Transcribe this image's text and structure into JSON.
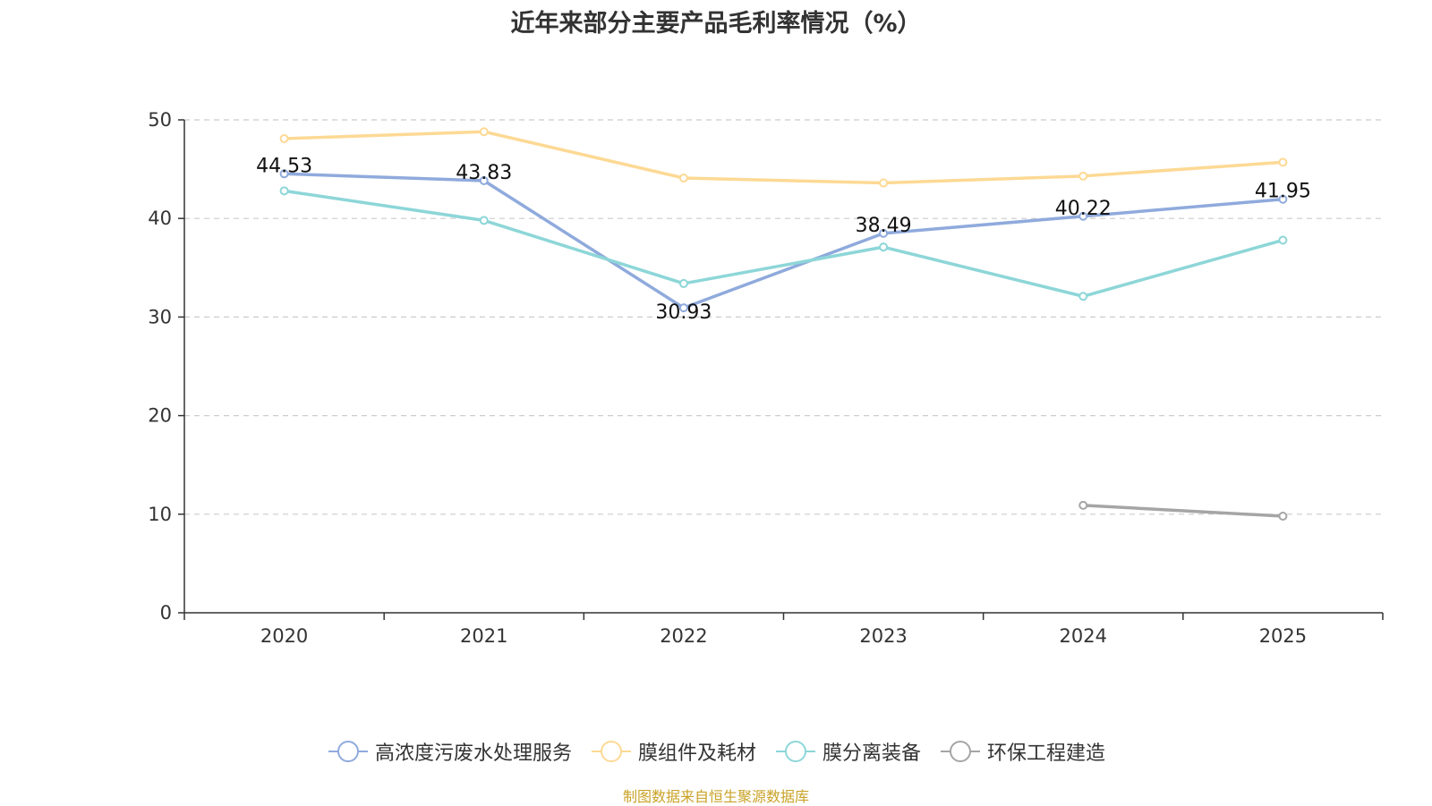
{
  "chart_data": {
    "type": "line",
    "title": "近年来部分主要产品毛利率情况（%）",
    "categories": [
      "2020",
      "2021",
      "2022",
      "2023",
      "2024",
      "2025"
    ],
    "ylim": [
      0,
      50
    ],
    "yticks": [
      0,
      10,
      20,
      30,
      40,
      50
    ],
    "grid": true,
    "legend_position": "bottom",
    "series": [
      {
        "name": "高浓度污废水处理服务",
        "color": "#8faadc",
        "values": [
          44.53,
          43.83,
          30.93,
          38.49,
          40.22,
          41.95
        ],
        "labels": [
          "44.53",
          "43.83",
          "30.93",
          "38.49",
          "40.22",
          "41.95"
        ]
      },
      {
        "name": "膜组件及耗材",
        "color": "#fdd994",
        "values": [
          48.1,
          48.8,
          44.1,
          43.6,
          44.3,
          45.7
        ]
      },
      {
        "name": "膜分离装备",
        "color": "#8dd6d8",
        "values": [
          42.8,
          39.8,
          33.4,
          37.1,
          32.1,
          37.8
        ]
      },
      {
        "name": "环保工程建造",
        "color": "#a5a5a5",
        "values": [
          null,
          null,
          null,
          null,
          10.9,
          9.8
        ]
      }
    ]
  },
  "source": {
    "text": "制图数据来自恒生聚源数据库",
    "color": "#c9a227"
  }
}
